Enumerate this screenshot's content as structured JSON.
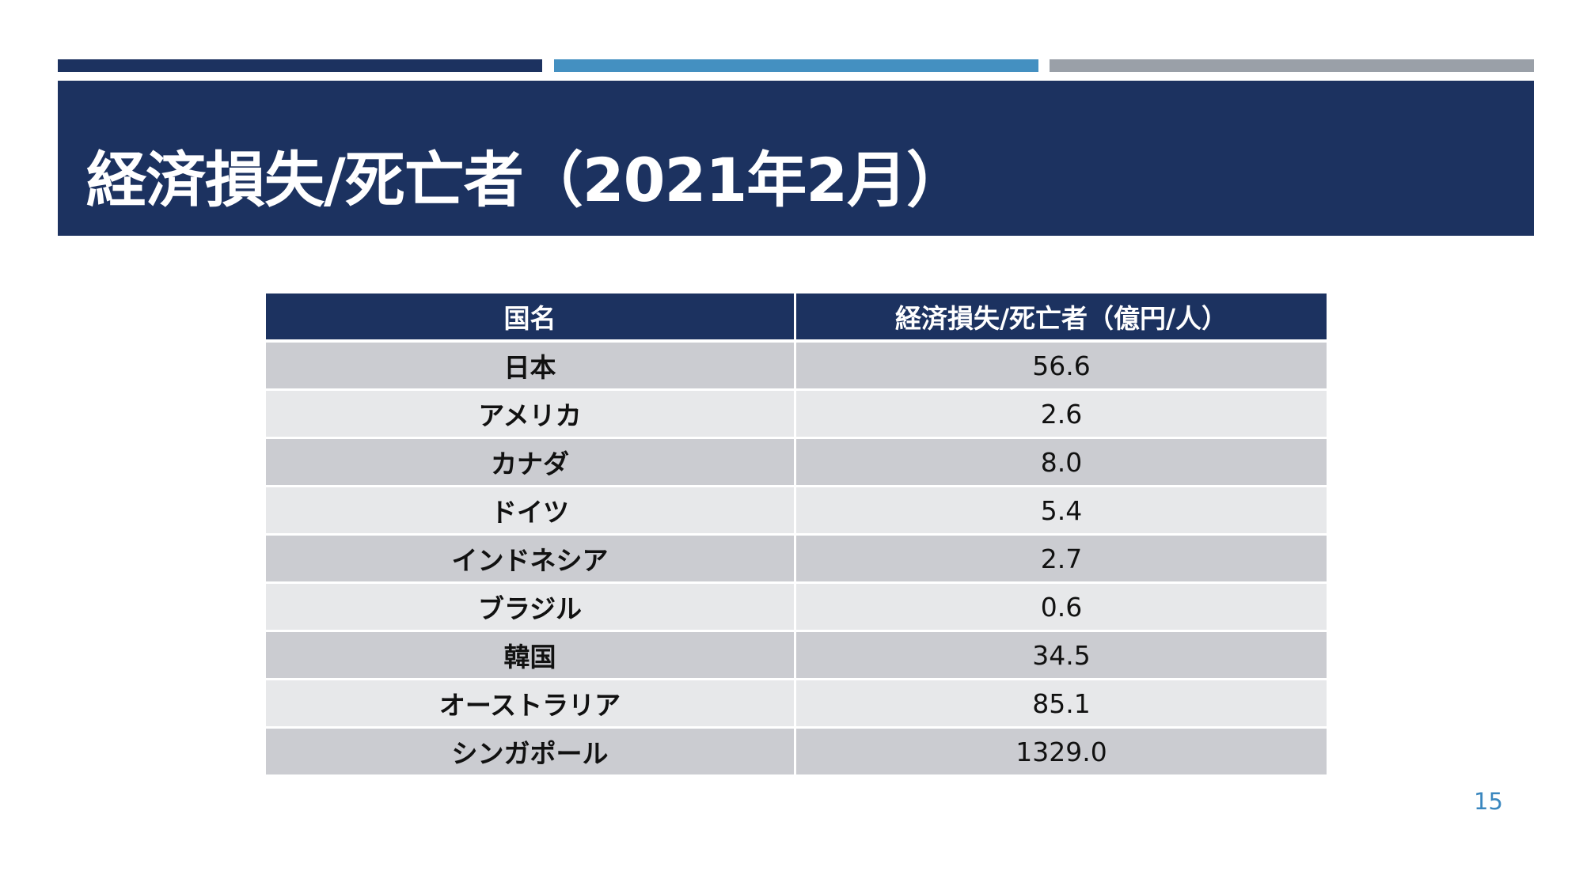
{
  "slide": {
    "title": "経済損失/死亡者（2021年2月）",
    "page_number": "15"
  },
  "table": {
    "headers": [
      "国名",
      "経済損失/死亡者（億円/人）"
    ],
    "rows": [
      {
        "country": "日本",
        "value": "56.6"
      },
      {
        "country": "アメリカ",
        "value": "2.6"
      },
      {
        "country": "カナダ",
        "value": "8.0"
      },
      {
        "country": "ドイツ",
        "value": "5.4"
      },
      {
        "country": "インドネシア",
        "value": "2.7"
      },
      {
        "country": "ブラジル",
        "value": "0.6"
      },
      {
        "country": "韓国",
        "value": "34.5"
      },
      {
        "country": "オーストラリア",
        "value": "85.1"
      },
      {
        "country": "シンガポール",
        "value": "1329.0"
      }
    ]
  },
  "colors": {
    "navy": "#1c3260",
    "blue_accent": "#4490c1",
    "gray_accent": "#9aa0a8",
    "row_dark": "#cbccd1",
    "row_light": "#e7e8ea",
    "page_number": "#3a87bf"
  }
}
